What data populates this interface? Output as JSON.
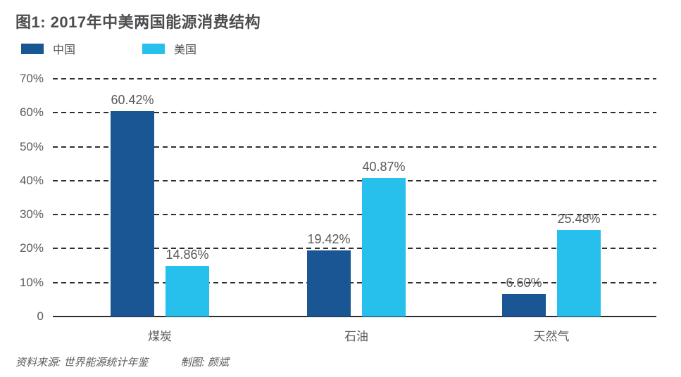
{
  "header": {
    "title": "图1: 2017年中美两国能源消费结构"
  },
  "legend": [
    {
      "label": "中国",
      "color": "#1a5694"
    },
    {
      "label": "美国",
      "color": "#27c0ec"
    }
  ],
  "chart_data": {
    "type": "bar",
    "title": "图1: 2017年中美两国能源消费结构",
    "categories": [
      "煤炭",
      "石油",
      "天然气"
    ],
    "series": [
      {
        "name": "中国",
        "color": "#1a5694",
        "values": [
          60.42,
          19.42,
          6.6
        ],
        "labels": [
          "60.42%",
          "19.42%",
          "6.60%"
        ]
      },
      {
        "name": "美国",
        "color": "#27c0ec",
        "values": [
          14.86,
          40.87,
          25.48
        ],
        "labels": [
          "14.86%",
          "40.87%",
          "25.48%"
        ]
      }
    ],
    "xlabel": "",
    "ylabel": "",
    "ylim": [
      0,
      70
    ],
    "yticks": [
      0,
      10,
      20,
      30,
      40,
      50,
      60,
      70
    ],
    "ytick_labels": [
      "0",
      "10%",
      "20%",
      "30%",
      "40%",
      "50%",
      "60%",
      "70%"
    ],
    "grid": "horizontal-dashed",
    "legend_position": "top-left"
  },
  "footer": {
    "source": "资料来源: 世界能源统计年鉴",
    "credit": "制图: 颜斌"
  }
}
